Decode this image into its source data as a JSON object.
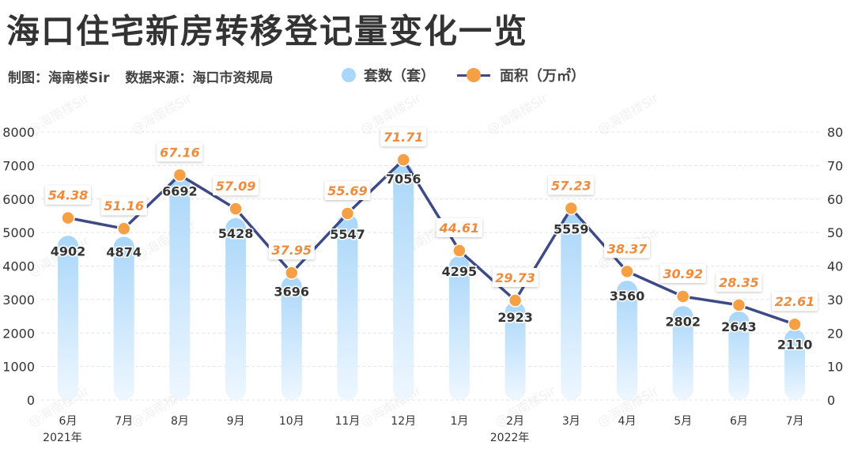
{
  "title": "海口住宅新房转移登记量变化一览",
  "subtitle": {
    "maker": "制图：海南楼Sir",
    "source": "数据来源：海口市资规局"
  },
  "legend": {
    "bar": "套数（套）",
    "line": "面积（万㎡）"
  },
  "watermark": "@海南楼Sir",
  "colors": {
    "bar_top": "#a9d6f9",
    "bar_bottom": "#eef7ff",
    "line": "#3d4a86",
    "point": "#f5a044",
    "area_label": "#f08a3c",
    "count_label": "#333333"
  },
  "chart_data": {
    "type": "bar",
    "categories": [
      "6月",
      "7月",
      "8月",
      "9月",
      "10月",
      "11月",
      "12月",
      "1月",
      "2月",
      "3月",
      "4月",
      "5月",
      "6月",
      "7月"
    ],
    "year_labels": [
      {
        "index": 0,
        "label": "2021年"
      },
      {
        "index": 8,
        "label": "2022年"
      }
    ],
    "series": [
      {
        "name": "套数（套）",
        "type": "bar",
        "axis": "left",
        "values": [
          4902,
          4874,
          6692,
          5428,
          3696,
          5547,
          7056,
          4295,
          2923,
          5559,
          3560,
          2802,
          2643,
          2110
        ]
      },
      {
        "name": "面积（万㎡）",
        "type": "line",
        "axis": "right",
        "values": [
          54.38,
          51.16,
          67.16,
          57.09,
          37.95,
          55.69,
          71.71,
          44.61,
          29.73,
          57.23,
          38.37,
          30.92,
          28.35,
          22.61
        ]
      }
    ],
    "y_left": {
      "min": 0,
      "max": 8000,
      "ticks": [
        0,
        1000,
        2000,
        3000,
        4000,
        5000,
        6000,
        7000,
        8000
      ]
    },
    "y_right": {
      "min": 0,
      "max": 80,
      "ticks": [
        0,
        10,
        20,
        30,
        40,
        50,
        60,
        70,
        80
      ]
    },
    "grid": true
  }
}
